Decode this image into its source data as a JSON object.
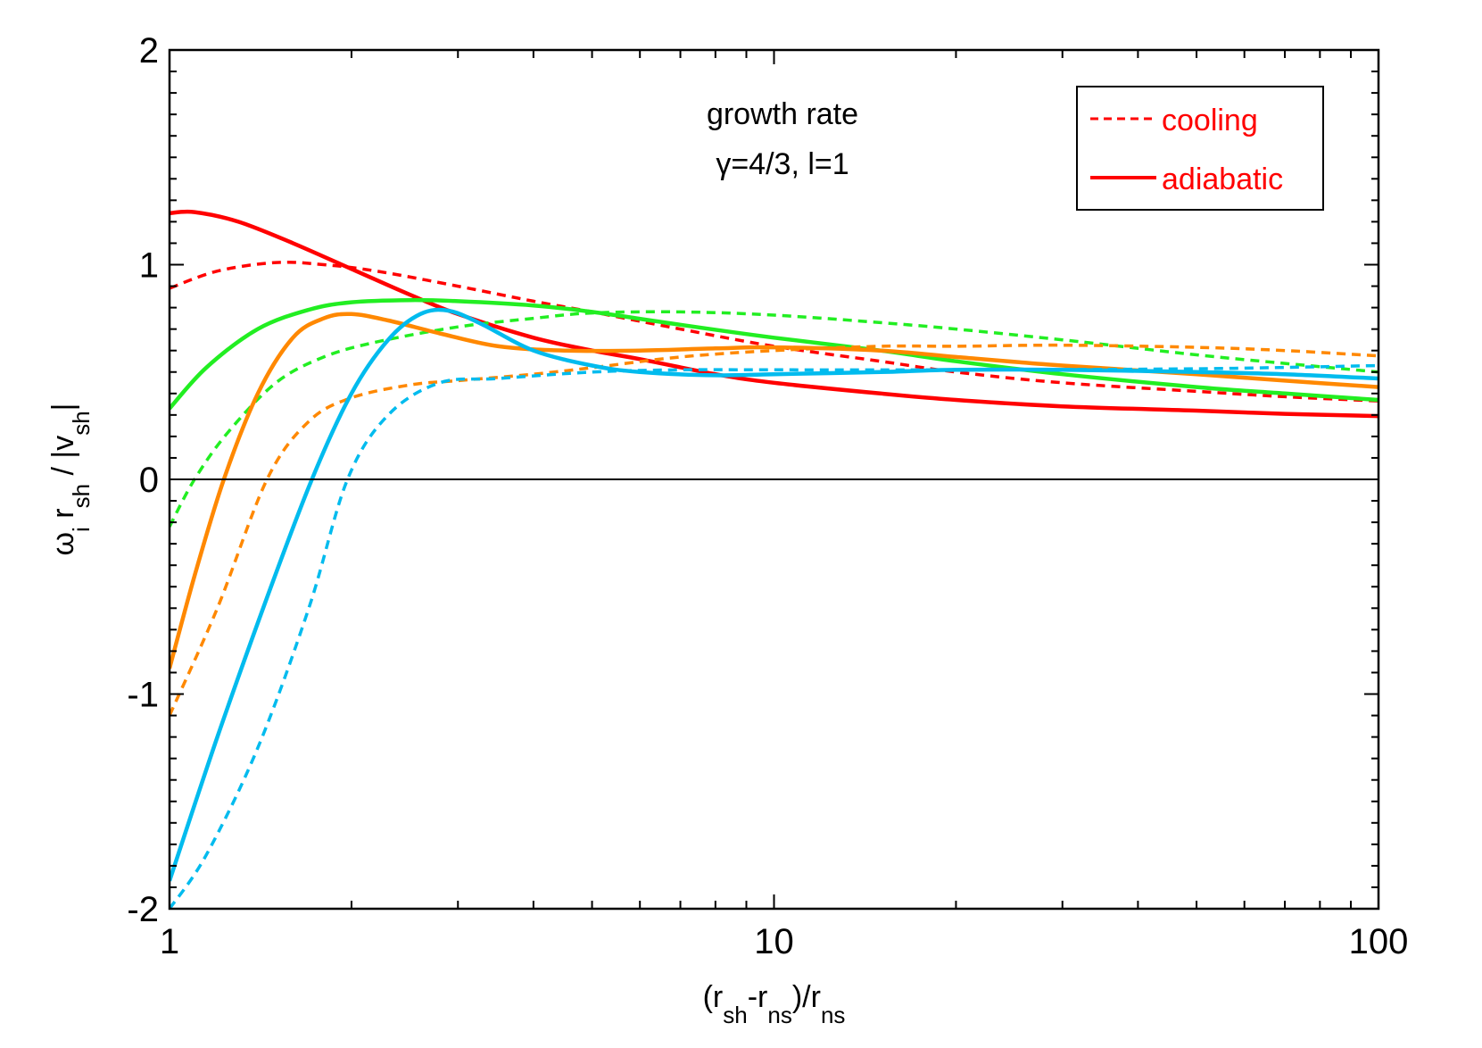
{
  "chart_data": {
    "type": "line",
    "title": "",
    "xscale": "log",
    "xlim": [
      1,
      100
    ],
    "ylim": [
      -2,
      2
    ],
    "grid": false,
    "xticks": [
      {
        "value": 1,
        "label": "1"
      },
      {
        "value": 10,
        "label": "10"
      },
      {
        "value": 100,
        "label": "100"
      }
    ],
    "yticks": [
      {
        "value": 2,
        "label": "2"
      },
      {
        "value": 1,
        "label": "1"
      },
      {
        "value": 0,
        "label": "0"
      },
      {
        "value": -1,
        "label": "-1"
      },
      {
        "value": -2,
        "label": "-2"
      }
    ],
    "xlabel": {
      "parts": [
        {
          "text": "(r",
          "sub": false
        },
        {
          "text": "sh",
          "sub": true
        },
        {
          "text": "-r",
          "sub": false
        },
        {
          "text": "ns",
          "sub": true
        },
        {
          "text": ")/r",
          "sub": false
        },
        {
          "text": "ns",
          "sub": true
        }
      ]
    },
    "ylabel": {
      "parts": [
        {
          "text": "ω",
          "sub": false
        },
        {
          "text": "i",
          "sub": true
        },
        {
          "text": " r",
          "sub": false
        },
        {
          "text": "sh",
          "sub": true
        },
        {
          "text": " / |v",
          "sub": false
        },
        {
          "text": "sh",
          "sub": true
        },
        {
          "text": "|",
          "sub": false
        }
      ]
    },
    "annotations": [
      {
        "text": "growth rate"
      },
      {
        "text": "γ=4/3, l=1"
      }
    ],
    "legend": {
      "placement": "top-right",
      "items": [
        {
          "label": "cooling",
          "style": "dashed",
          "color": "#ff0000"
        },
        {
          "label": "adiabatic",
          "style": "solid",
          "color": "#ff0000"
        }
      ]
    },
    "series": [
      {
        "color": "#ff0000",
        "style": "solid",
        "points": [
          [
            1,
            1.24
          ],
          [
            1.1,
            1.245
          ],
          [
            1.3,
            1.2
          ],
          [
            1.6,
            1.1
          ],
          [
            2,
            0.98
          ],
          [
            2.5,
            0.86
          ],
          [
            3,
            0.77
          ],
          [
            4,
            0.66
          ],
          [
            5,
            0.6
          ],
          [
            6,
            0.56
          ],
          [
            8,
            0.49
          ],
          [
            10,
            0.45
          ],
          [
            15,
            0.4
          ],
          [
            20,
            0.37
          ],
          [
            30,
            0.34
          ],
          [
            50,
            0.32
          ],
          [
            70,
            0.305
          ],
          [
            100,
            0.295
          ]
        ]
      },
      {
        "color": "#ff0000",
        "style": "dashed",
        "points": [
          [
            1,
            0.89
          ],
          [
            1.2,
            0.97
          ],
          [
            1.5,
            1.01
          ],
          [
            1.8,
            1.0
          ],
          [
            2.2,
            0.97
          ],
          [
            3,
            0.9
          ],
          [
            4,
            0.83
          ],
          [
            5,
            0.78
          ],
          [
            7,
            0.7
          ],
          [
            10,
            0.62
          ],
          [
            15,
            0.55
          ],
          [
            20,
            0.5
          ],
          [
            30,
            0.45
          ],
          [
            50,
            0.41
          ],
          [
            70,
            0.385
          ],
          [
            100,
            0.365
          ]
        ]
      },
      {
        "color": "#22ee22",
        "style": "solid",
        "points": [
          [
            1,
            0.33
          ],
          [
            1.15,
            0.52
          ],
          [
            1.4,
            0.7
          ],
          [
            1.7,
            0.79
          ],
          [
            2,
            0.825
          ],
          [
            2.5,
            0.835
          ],
          [
            3,
            0.83
          ],
          [
            4,
            0.81
          ],
          [
            5,
            0.78
          ],
          [
            7,
            0.72
          ],
          [
            10,
            0.66
          ],
          [
            15,
            0.6
          ],
          [
            20,
            0.55
          ],
          [
            30,
            0.49
          ],
          [
            50,
            0.43
          ],
          [
            70,
            0.4
          ],
          [
            100,
            0.37
          ]
        ]
      },
      {
        "color": "#22ee22",
        "style": "dashed",
        "points": [
          [
            1,
            -0.22
          ],
          [
            1.1,
            0.0
          ],
          [
            1.25,
            0.22
          ],
          [
            1.5,
            0.45
          ],
          [
            1.8,
            0.57
          ],
          [
            2.2,
            0.64
          ],
          [
            3,
            0.71
          ],
          [
            4,
            0.75
          ],
          [
            5,
            0.775
          ],
          [
            7,
            0.78
          ],
          [
            10,
            0.765
          ],
          [
            15,
            0.73
          ],
          [
            20,
            0.7
          ],
          [
            30,
            0.65
          ],
          [
            50,
            0.58
          ],
          [
            70,
            0.54
          ],
          [
            100,
            0.5
          ]
        ]
      },
      {
        "color": "#ff8800",
        "style": "solid",
        "points": [
          [
            1,
            -0.88
          ],
          [
            1.1,
            -0.45
          ],
          [
            1.23,
            0.0
          ],
          [
            1.4,
            0.4
          ],
          [
            1.6,
            0.66
          ],
          [
            1.8,
            0.75
          ],
          [
            2,
            0.77
          ],
          [
            2.3,
            0.74
          ],
          [
            2.8,
            0.68
          ],
          [
            3.5,
            0.62
          ],
          [
            4.5,
            0.6
          ],
          [
            6,
            0.6
          ],
          [
            8,
            0.61
          ],
          [
            10,
            0.615
          ],
          [
            15,
            0.6
          ],
          [
            20,
            0.57
          ],
          [
            30,
            0.53
          ],
          [
            50,
            0.49
          ],
          [
            70,
            0.46
          ],
          [
            100,
            0.43
          ]
        ]
      },
      {
        "color": "#ff8800",
        "style": "dashed",
        "points": [
          [
            1,
            -1.1
          ],
          [
            1.2,
            -0.6
          ],
          [
            1.45,
            0.0
          ],
          [
            1.7,
            0.27
          ],
          [
            2,
            0.38
          ],
          [
            2.5,
            0.44
          ],
          [
            3,
            0.46
          ],
          [
            4,
            0.49
          ],
          [
            5,
            0.52
          ],
          [
            7,
            0.57
          ],
          [
            10,
            0.6
          ],
          [
            15,
            0.62
          ],
          [
            20,
            0.62
          ],
          [
            30,
            0.625
          ],
          [
            50,
            0.615
          ],
          [
            70,
            0.6
          ],
          [
            100,
            0.575
          ]
        ]
      },
      {
        "color": "#00bbee",
        "style": "solid",
        "points": [
          [
            1,
            -1.87
          ],
          [
            1.2,
            -1.2
          ],
          [
            1.45,
            -0.55
          ],
          [
            1.72,
            0.0
          ],
          [
            2,
            0.4
          ],
          [
            2.3,
            0.65
          ],
          [
            2.6,
            0.77
          ],
          [
            2.9,
            0.785
          ],
          [
            3.3,
            0.72
          ],
          [
            4,
            0.6
          ],
          [
            5,
            0.53
          ],
          [
            6,
            0.5
          ],
          [
            8,
            0.485
          ],
          [
            10,
            0.49
          ],
          [
            15,
            0.5
          ],
          [
            20,
            0.51
          ],
          [
            30,
            0.51
          ],
          [
            50,
            0.5
          ],
          [
            70,
            0.49
          ],
          [
            100,
            0.47
          ]
        ]
      },
      {
        "color": "#00bbee",
        "style": "dashed",
        "points": [
          [
            1,
            -2.0
          ],
          [
            1.15,
            -1.75
          ],
          [
            1.4,
            -1.25
          ],
          [
            1.7,
            -0.6
          ],
          [
            1.97,
            0.0
          ],
          [
            2.3,
            0.3
          ],
          [
            2.8,
            0.45
          ],
          [
            3.5,
            0.47
          ],
          [
            5,
            0.5
          ],
          [
            7,
            0.51
          ],
          [
            10,
            0.51
          ],
          [
            20,
            0.51
          ],
          [
            50,
            0.515
          ],
          [
            100,
            0.53
          ]
        ]
      }
    ]
  }
}
